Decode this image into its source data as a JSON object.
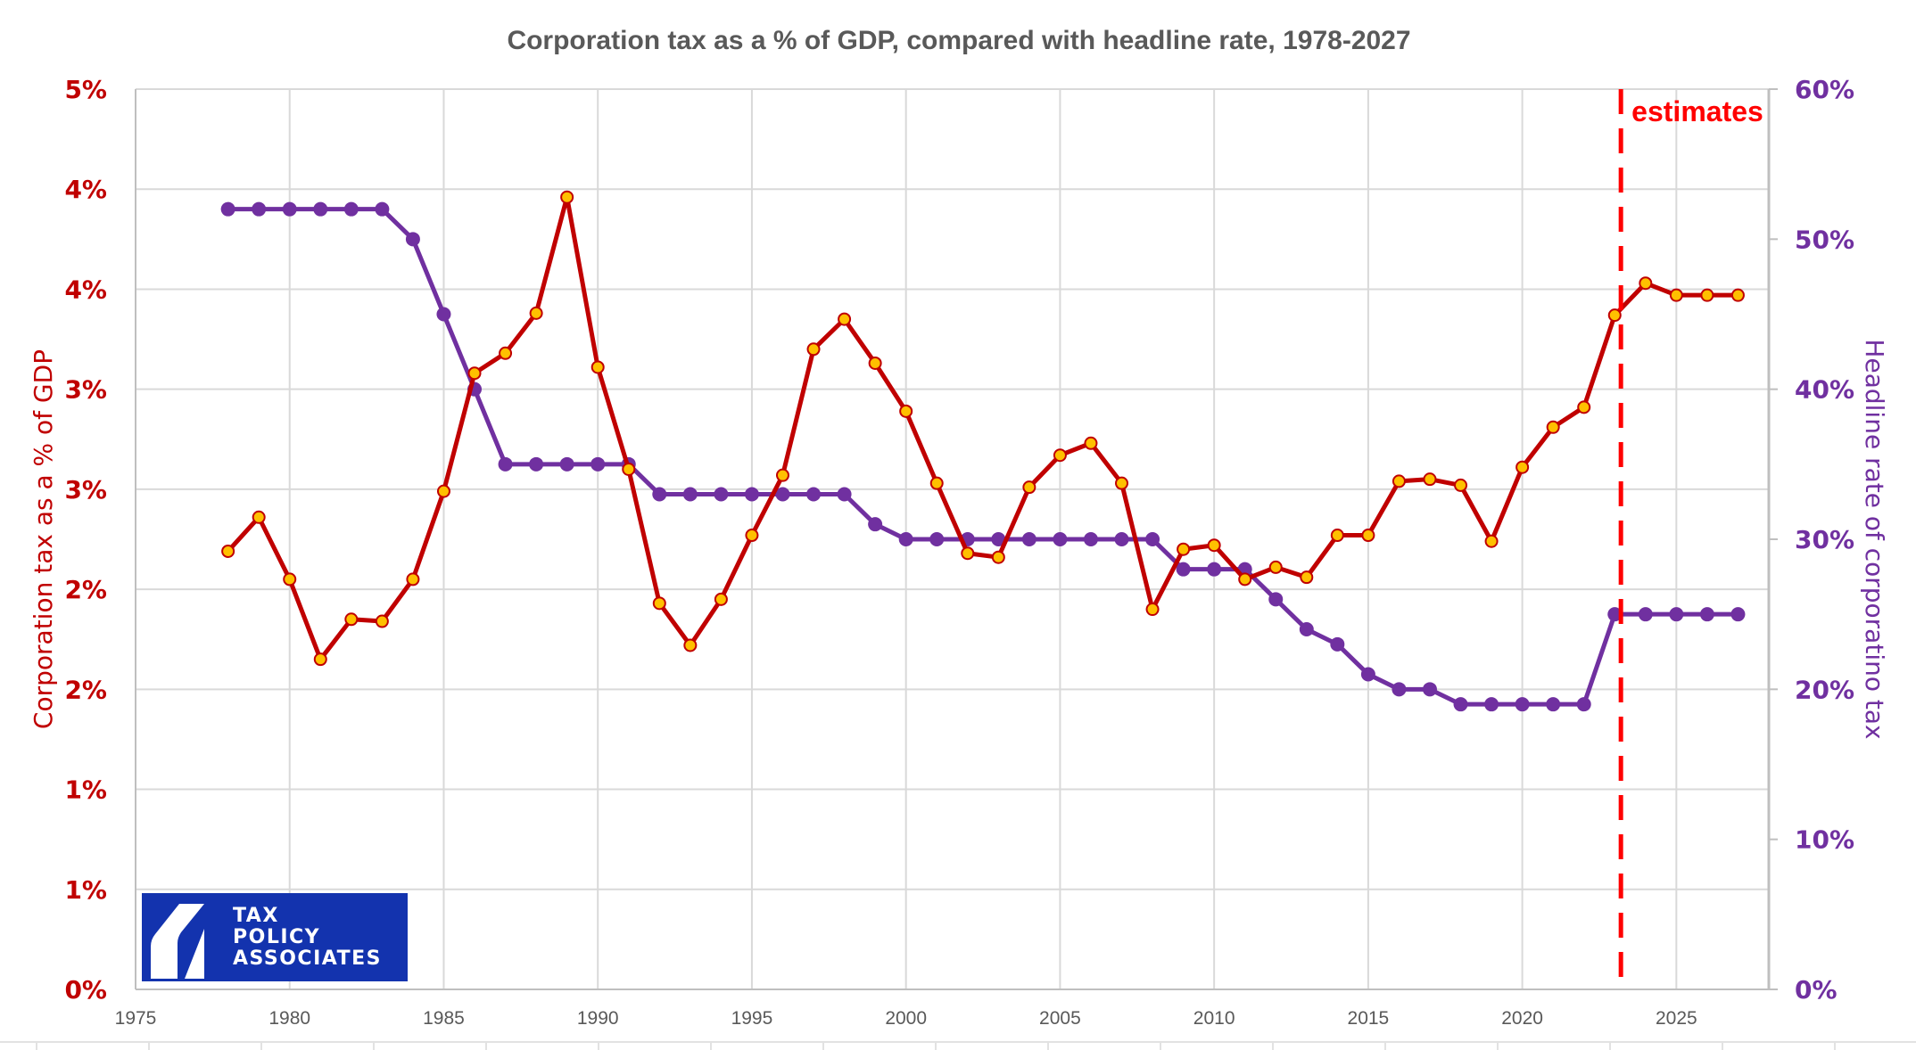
{
  "chart_data": {
    "type": "line",
    "title": "Corporation tax as a % of GDP, compared with headline rate, 1978-2027",
    "xlabel": "",
    "ylabel_left": "Corporation tax as a % of GDP",
    "ylabel_right": "Headline rate of corporatino tax",
    "xlim": [
      1975,
      2028
    ],
    "x_ticks": [
      "1975",
      "1980",
      "1985",
      "1990",
      "1995",
      "2000",
      "2005",
      "2010",
      "2015",
      "2020",
      "2025"
    ],
    "ylim_left": [
      0,
      4.5
    ],
    "y_ticks_left": [
      {
        "value": 0,
        "label": "0%"
      },
      {
        "value": 0.5,
        "label": "1%"
      },
      {
        "value": 1.0,
        "label": "1%"
      },
      {
        "value": 1.5,
        "label": "2%"
      },
      {
        "value": 2.0,
        "label": "2%"
      },
      {
        "value": 2.5,
        "label": "3%"
      },
      {
        "value": 3.0,
        "label": "3%"
      },
      {
        "value": 3.5,
        "label": "4%"
      },
      {
        "value": 4.0,
        "label": "4%"
      },
      {
        "value": 4.5,
        "label": "5%"
      }
    ],
    "ylim_right": [
      0,
      60
    ],
    "y_ticks_right": [
      {
        "value": 0,
        "label": "0%"
      },
      {
        "value": 10,
        "label": "10%"
      },
      {
        "value": 20,
        "label": "20%"
      },
      {
        "value": 30,
        "label": "30%"
      },
      {
        "value": 40,
        "label": "40%"
      },
      {
        "value": 50,
        "label": "50%"
      },
      {
        "value": 60,
        "label": "60%"
      }
    ],
    "grid": true,
    "x": [
      1978,
      1979,
      1980,
      1981,
      1982,
      1983,
      1984,
      1985,
      1986,
      1987,
      1988,
      1989,
      1990,
      1991,
      1992,
      1993,
      1994,
      1995,
      1996,
      1997,
      1998,
      1999,
      2000,
      2001,
      2002,
      2003,
      2004,
      2005,
      2006,
      2007,
      2008,
      2009,
      2010,
      2011,
      2012,
      2013,
      2014,
      2015,
      2016,
      2017,
      2018,
      2019,
      2020,
      2021,
      2022,
      2023,
      2024,
      2025,
      2026,
      2027
    ],
    "series": [
      {
        "name": "Corporation tax as a % of GDP",
        "axis": "left",
        "color": "#C00000",
        "marker_fill": "#FFC000",
        "values": [
          2.19,
          2.36,
          2.05,
          1.65,
          1.85,
          1.84,
          2.05,
          2.49,
          3.08,
          3.18,
          3.38,
          3.96,
          3.11,
          2.6,
          1.93,
          1.72,
          1.95,
          2.27,
          2.57,
          3.2,
          3.35,
          3.13,
          2.89,
          2.53,
          2.18,
          2.16,
          2.51,
          2.67,
          2.73,
          2.53,
          1.9,
          2.2,
          2.22,
          2.05,
          2.11,
          2.06,
          2.27,
          2.27,
          2.54,
          2.55,
          2.52,
          2.24,
          2.61,
          2.81,
          2.91,
          3.37,
          3.53,
          3.47,
          3.47,
          3.47
        ]
      },
      {
        "name": "Headline rate of corporation tax",
        "axis": "right",
        "color": "#7030A0",
        "values": [
          52,
          52,
          52,
          52,
          52,
          52,
          50,
          45,
          40,
          35,
          35,
          35,
          35,
          35,
          33,
          33,
          33,
          33,
          33,
          33,
          33,
          31,
          30,
          30,
          30,
          30,
          30,
          30,
          30,
          30,
          30,
          28,
          28,
          28,
          26,
          24,
          23,
          21,
          20,
          20,
          19,
          19,
          19,
          19,
          19,
          25,
          25,
          25,
          25,
          25
        ]
      }
    ],
    "annotations": [
      {
        "type": "vline",
        "x": 2023.2,
        "style": "dashed",
        "color": "#FF0000",
        "label": "estimates"
      }
    ],
    "legend": "none"
  },
  "logo": {
    "lines": [
      "TAX",
      "POLICY",
      "ASSOCIATES"
    ],
    "background": "#1333AE"
  }
}
